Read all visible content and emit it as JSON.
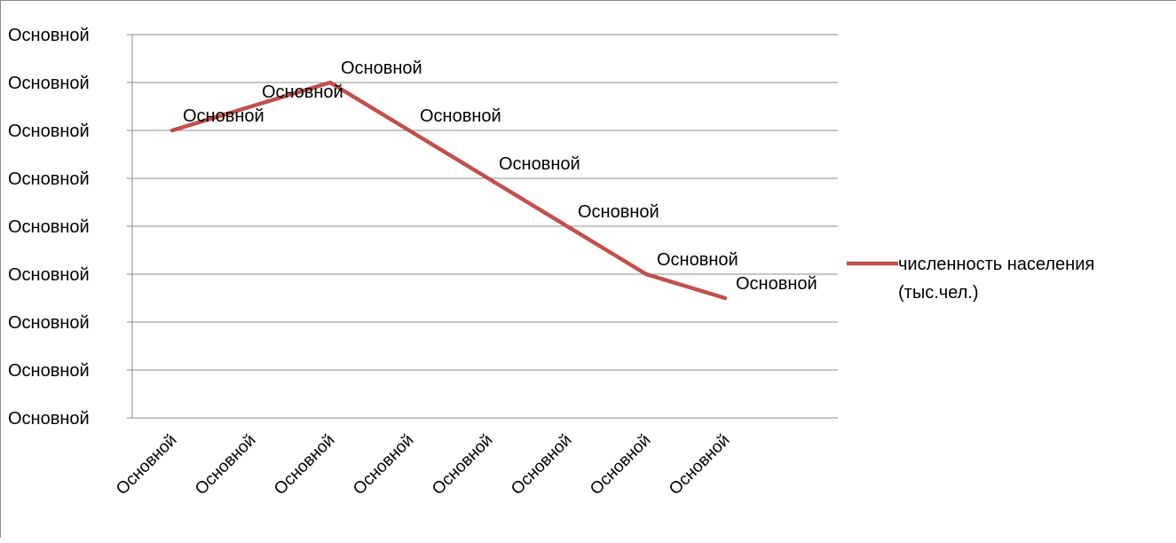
{
  "chart_data": {
    "type": "line",
    "categories": [
      "Основной",
      "Основной",
      "Основной",
      "Основной",
      "Основной",
      "Основной",
      "Основной",
      "Основной"
    ],
    "y_tick_labels": [
      "Основной",
      "Основной",
      "Основной",
      "Основной",
      "Основной",
      "Основной",
      "Основной",
      "Основной",
      "Основной"
    ],
    "ylim": [
      0,
      8
    ],
    "grid": true,
    "legend_position": "right",
    "series": [
      {
        "name": "численность населения (тыс.чел.)",
        "color": "#c0504d",
        "values": [
          6.0,
          6.5,
          7.0,
          6.0,
          5.0,
          4.0,
          3.0,
          2.5
        ],
        "data_labels": [
          "Основной",
          "Основной",
          "Основной",
          "Основной",
          "Основной",
          "Основной",
          "Основной",
          "Основной"
        ]
      }
    ]
  }
}
